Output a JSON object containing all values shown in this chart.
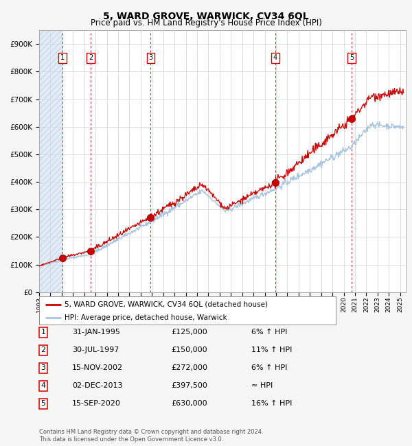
{
  "title": "5, WARD GROVE, WARWICK, CV34 6QL",
  "subtitle": "Price paid vs. HM Land Registry's House Price Index (HPI)",
  "xlim_start": 1993.0,
  "xlim_end": 2025.5,
  "ylim_min": 0,
  "ylim_max": 950000,
  "yticks": [
    0,
    100000,
    200000,
    300000,
    400000,
    500000,
    600000,
    700000,
    800000,
    900000
  ],
  "ytick_labels": [
    "£0",
    "£100K",
    "£200K",
    "£300K",
    "£400K",
    "£500K",
    "£600K",
    "£700K",
    "£800K",
    "£900K"
  ],
  "xtick_years": [
    1993,
    1994,
    1995,
    1996,
    1997,
    1998,
    1999,
    2000,
    2001,
    2002,
    2003,
    2004,
    2005,
    2006,
    2007,
    2008,
    2009,
    2010,
    2011,
    2012,
    2013,
    2014,
    2015,
    2016,
    2017,
    2018,
    2019,
    2020,
    2021,
    2022,
    2023,
    2024,
    2025
  ],
  "hpi_color": "#a8c4e0",
  "price_color": "#cc0000",
  "sale_dot_color": "#cc0000",
  "dashed_line_color": "#cc0000",
  "hatch_color": "#d0dff0",
  "sales": [
    {
      "num": 1,
      "year": 1995.08,
      "price": 125000,
      "date": "31-JAN-1995",
      "hpi_pct": "6% ↑ HPI"
    },
    {
      "num": 2,
      "year": 1997.58,
      "price": 150000,
      "date": "30-JUL-1997",
      "hpi_pct": "11% ↑ HPI"
    },
    {
      "num": 3,
      "year": 2002.88,
      "price": 272000,
      "date": "15-NOV-2002",
      "hpi_pct": "6% ↑ HPI"
    },
    {
      "num": 4,
      "year": 2013.92,
      "price": 397500,
      "date": "02-DEC-2013",
      "hpi_pct": "≈ HPI"
    },
    {
      "num": 5,
      "year": 2020.71,
      "price": 630000,
      "date": "15-SEP-2020",
      "hpi_pct": "16% ↑ HPI"
    }
  ],
  "legend_line1": "5, WARD GROVE, WARWICK, CV34 6QL (detached house)",
  "legend_line2": "HPI: Average price, detached house, Warwick",
  "footer": "Contains HM Land Registry data © Crown copyright and database right 2024.\nThis data is licensed under the Open Government Licence v3.0.",
  "fig_bg_color": "#f5f5f5",
  "plot_bg_color": "#ffffff",
  "grid_color": "#cccccc",
  "title_fontsize": 10,
  "subtitle_fontsize": 8.5
}
